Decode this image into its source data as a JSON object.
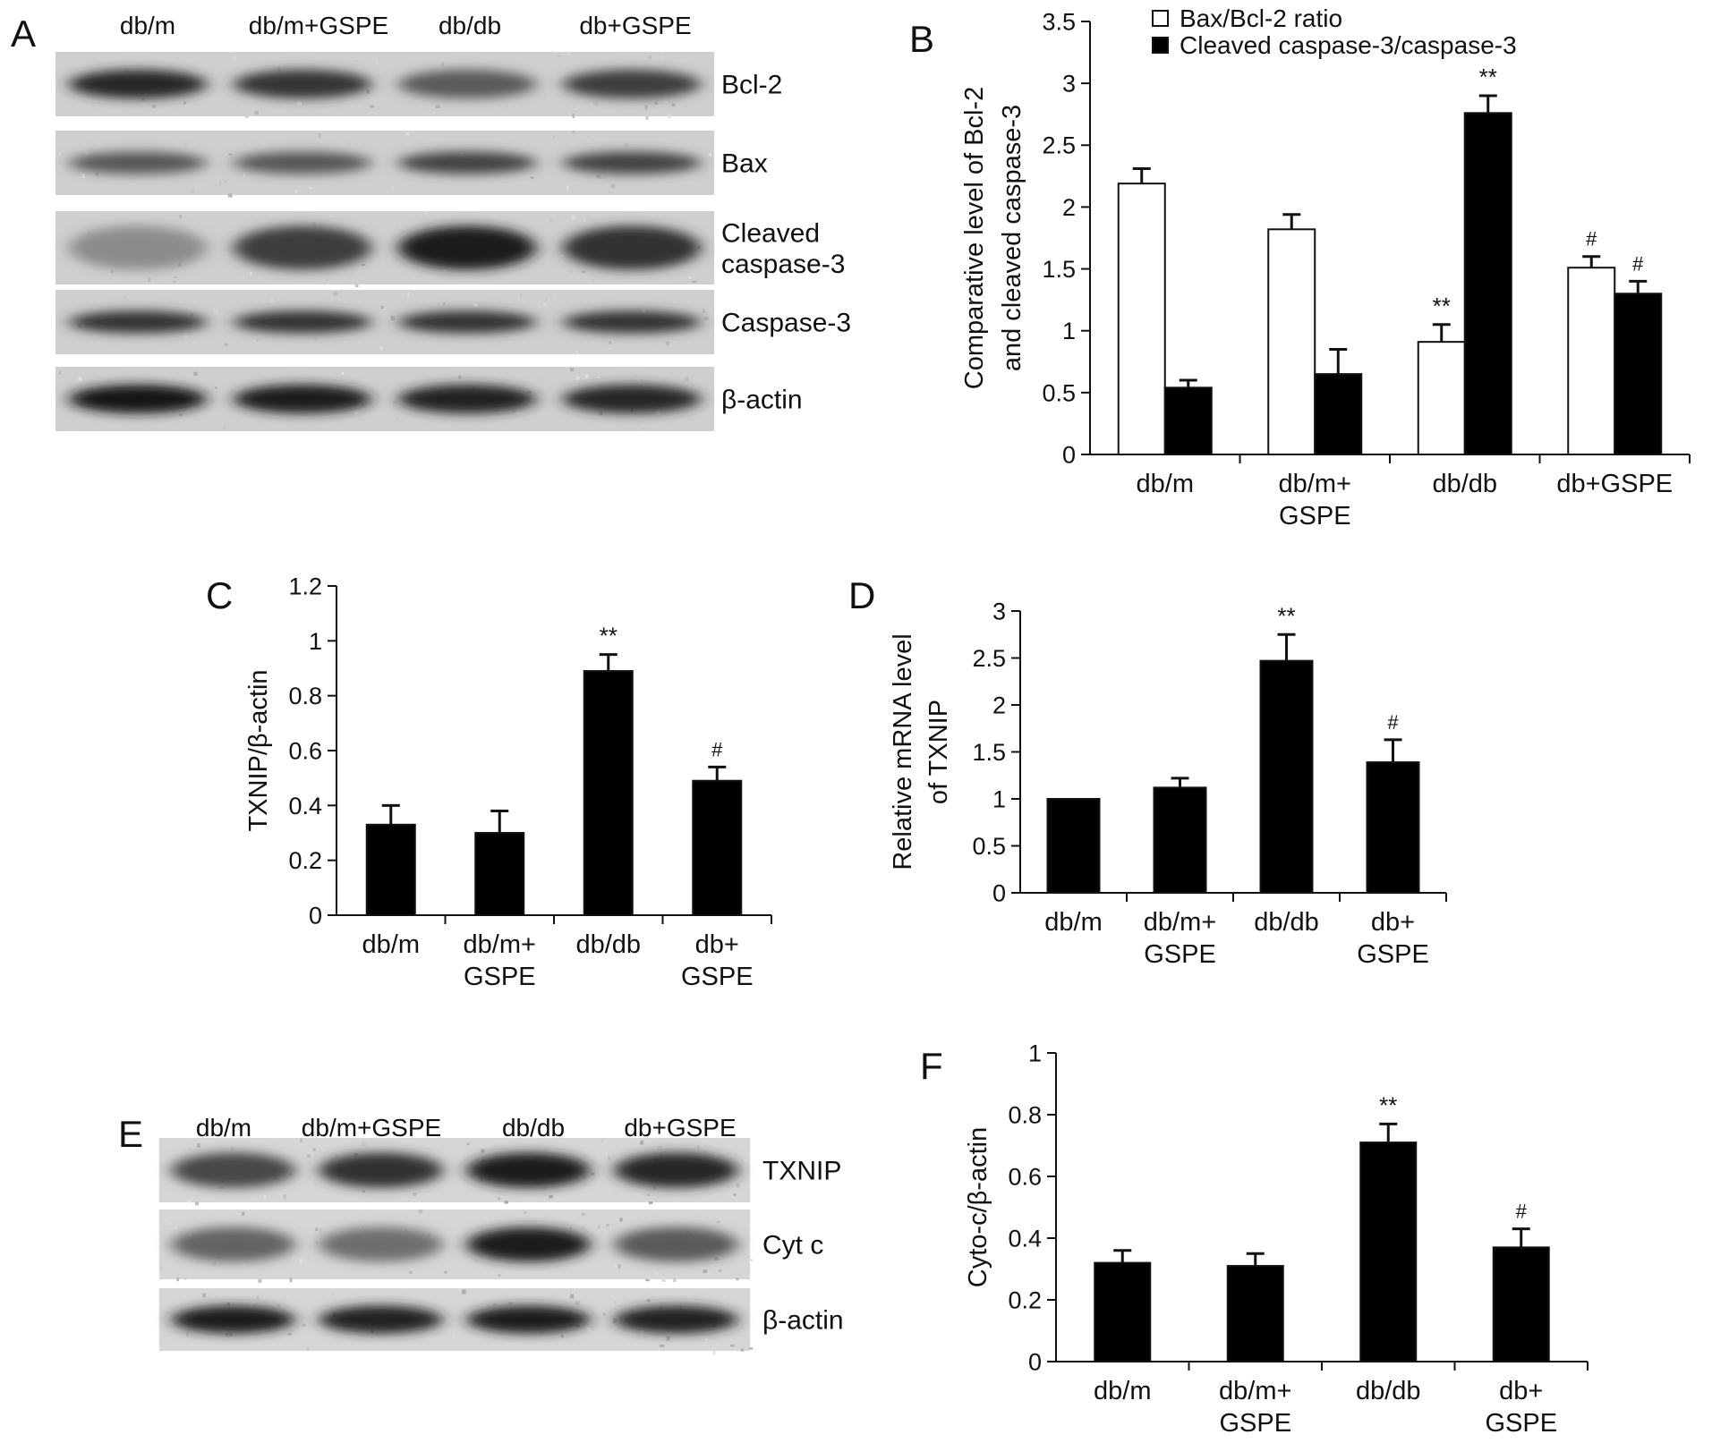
{
  "panel_letters": {
    "A": "A",
    "B": "B",
    "C": "C",
    "D": "D",
    "E": "E",
    "F": "F"
  },
  "blot_A": {
    "lanes": [
      "db/m",
      "db/m+GSPE",
      "db/db",
      "db+GSPE"
    ],
    "rows": [
      {
        "label_lines": [
          "Bcl-2"
        ],
        "intensity": [
          0.85,
          0.78,
          0.6,
          0.75
        ],
        "band_height": 0.45
      },
      {
        "label_lines": [
          "Bax"
        ],
        "intensity": [
          0.62,
          0.62,
          0.72,
          0.72
        ],
        "band_height": 0.35
      },
      {
        "label_lines": [
          "Cleaved",
          "caspase-3"
        ],
        "intensity": [
          0.35,
          0.75,
          0.9,
          0.8
        ],
        "band_height": 0.6
      },
      {
        "label_lines": [
          "Caspase-3"
        ],
        "intensity": [
          0.8,
          0.8,
          0.8,
          0.8
        ],
        "band_height": 0.35
      },
      {
        "label_lines": [
          "β-actin"
        ],
        "intensity": [
          0.95,
          0.92,
          0.88,
          0.85
        ],
        "band_height": 0.45
      }
    ]
  },
  "blot_E": {
    "lanes": [
      "db/m",
      "db/m+GSPE",
      "db/db",
      "db+GSPE"
    ],
    "rows": [
      {
        "label_lines": [
          "TXNIP"
        ],
        "intensity": [
          0.7,
          0.8,
          0.9,
          0.85
        ],
        "band_height": 0.55
      },
      {
        "label_lines": [
          "Cyt c"
        ],
        "intensity": [
          0.55,
          0.5,
          0.9,
          0.6
        ],
        "band_height": 0.5
      },
      {
        "label_lines": [
          "β-actin"
        ],
        "intensity": [
          0.9,
          0.88,
          0.9,
          0.88
        ],
        "band_height": 0.45
      }
    ]
  },
  "chart_data": [
    {
      "id": "B",
      "type": "bar",
      "categories": [
        [
          "db/m"
        ],
        [
          "db/m+",
          "GSPE"
        ],
        [
          "db/db"
        ],
        [
          "db+GSPE"
        ]
      ],
      "ylabel_lines": [
        "Comparative level of Bcl-2",
        "and cleaved caspase-3"
      ],
      "ylim": [
        0,
        3.5
      ],
      "yticks": [
        "0",
        "0.5",
        "1",
        "1.5",
        "2",
        "2.5",
        "3",
        "3.5"
      ],
      "grid": false,
      "legend_position": "top",
      "series": [
        {
          "name": "Bax/Bcl-2 ratio",
          "fill": "#ffffff",
          "values": [
            2.19,
            1.82,
            0.91,
            1.51
          ],
          "errors": [
            0.12,
            0.12,
            0.14,
            0.09
          ],
          "annotations": [
            "",
            "",
            "**",
            "#"
          ]
        },
        {
          "name": "Cleaved caspase-3/caspase-3",
          "fill": "#000000",
          "values": [
            0.54,
            0.65,
            2.76,
            1.3
          ],
          "errors": [
            0.06,
            0.2,
            0.14,
            0.1
          ],
          "annotations": [
            "",
            "",
            "**",
            "#"
          ]
        }
      ]
    },
    {
      "id": "C",
      "type": "bar",
      "categories": [
        [
          "db/m"
        ],
        [
          "db/m+",
          "GSPE"
        ],
        [
          "db/db"
        ],
        [
          "db+",
          "GSPE"
        ]
      ],
      "ylabel_lines": [
        "TXNIP/β-actin"
      ],
      "ylim": [
        0,
        1.2
      ],
      "yticks": [
        "0",
        "0.2",
        "0.4",
        "0.6",
        "0.8",
        "1",
        "1.2"
      ],
      "grid": false,
      "series": [
        {
          "fill": "#000000",
          "values": [
            0.33,
            0.3,
            0.89,
            0.49
          ],
          "errors": [
            0.07,
            0.08,
            0.06,
            0.05
          ],
          "annotations": [
            "",
            "",
            "**",
            "#"
          ]
        }
      ]
    },
    {
      "id": "D",
      "type": "bar",
      "categories": [
        [
          "db/m"
        ],
        [
          "db/m+",
          "GSPE"
        ],
        [
          "db/db"
        ],
        [
          "db+",
          "GSPE"
        ]
      ],
      "ylabel_lines": [
        "Relative mRNA level",
        "of TXNIP"
      ],
      "ylim": [
        0,
        3
      ],
      "yticks": [
        "0",
        "0.5",
        "1",
        "1.5",
        "2",
        "2.5",
        "3"
      ],
      "grid": false,
      "series": [
        {
          "fill": "#000000",
          "values": [
            1.0,
            1.12,
            2.47,
            1.39
          ],
          "errors": [
            0.0,
            0.1,
            0.28,
            0.24
          ],
          "annotations": [
            "",
            "",
            "**",
            "#"
          ]
        }
      ]
    },
    {
      "id": "F",
      "type": "bar",
      "categories": [
        [
          "db/m"
        ],
        [
          "db/m+",
          "GSPE"
        ],
        [
          "db/db"
        ],
        [
          "db+",
          "GSPE"
        ]
      ],
      "ylabel_lines": [
        "Cyto-c/β-actin"
      ],
      "ylim": [
        0,
        1
      ],
      "yticks": [
        "0",
        "0.2",
        "0.4",
        "0.6",
        "0.8",
        "1"
      ],
      "grid": false,
      "series": [
        {
          "fill": "#000000",
          "values": [
            0.32,
            0.31,
            0.71,
            0.37
          ],
          "errors": [
            0.04,
            0.04,
            0.06,
            0.06
          ],
          "annotations": [
            "",
            "",
            "**",
            "#"
          ]
        }
      ]
    }
  ]
}
